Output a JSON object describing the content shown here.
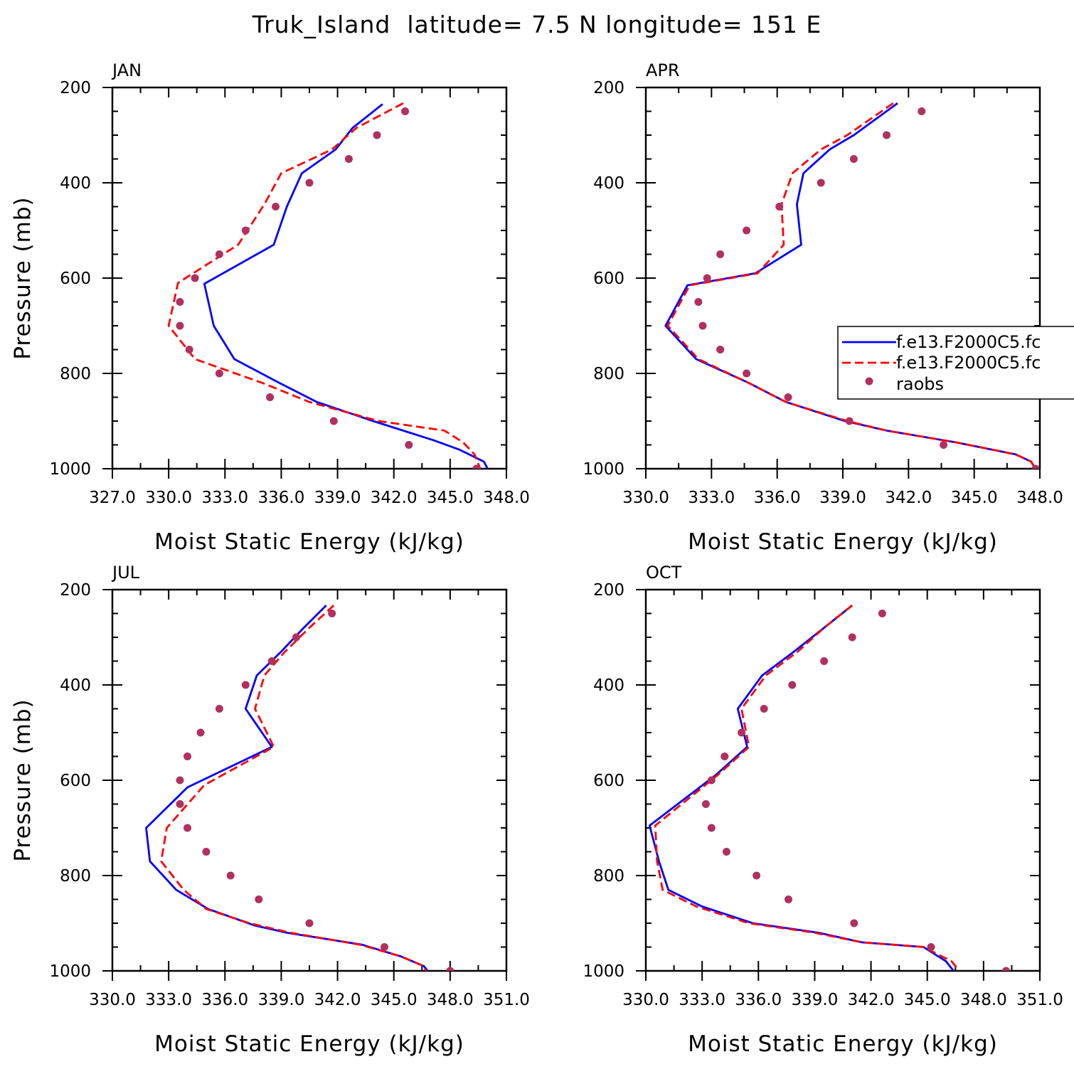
{
  "page_title": "Truk_Island  latitude= 7.5 N longitude= 151 E",
  "colors": {
    "series1": "#0000ff",
    "series2": "#ff0000",
    "raobs": "#b03060"
  },
  "legend": {
    "entries": [
      "f.e13.F2000C5.fc",
      "f.e13.F2000C5.fc",
      "raobs"
    ]
  },
  "chart_data": [
    {
      "type": "line",
      "panel_label": "JAN",
      "xlabel": "Moist Static Energy (kJ/kg)",
      "ylabel": "Pressure (mb)",
      "xlim": [
        327.0,
        348.0
      ],
      "ylim": [
        1000,
        200
      ],
      "xtick_values": [
        327.0,
        330.0,
        333.0,
        336.0,
        339.0,
        342.0,
        345.0,
        348.0
      ],
      "xtick_labels": [
        "327.0",
        "330.0",
        "333.0",
        "336.0",
        "339.0",
        "342.0",
        "345.0",
        "348.0"
      ],
      "ytick_values": [
        200,
        400,
        600,
        800,
        1000
      ],
      "ytick_labels": [
        "200",
        "400",
        "600",
        "800",
        "1000"
      ],
      "series": [
        {
          "name": "f.e13.F2000C5.fc",
          "style": "solid",
          "x": [
            341.4,
            339.8,
            338.9,
            337.1,
            336.3,
            335.6,
            331.9,
            332.4,
            333.5,
            335.9,
            337.9,
            340.9,
            344.1,
            345.5,
            346.8,
            347.0
          ],
          "y": [
            235,
            285,
            330,
            380,
            450,
            530,
            612,
            700,
            770,
            820,
            860,
            900,
            940,
            960,
            985,
            1000
          ]
        },
        {
          "name": "f.e13.F2000C5.fc",
          "style": "dashed",
          "x": [
            342.5,
            340.0,
            338.7,
            336.0,
            335.1,
            333.7,
            330.5,
            330.0,
            331.4,
            335.0,
            337.5,
            341.2,
            344.7,
            345.7,
            346.3,
            346.6
          ],
          "y": [
            233,
            285,
            330,
            380,
            445,
            530,
            610,
            700,
            770,
            820,
            860,
            900,
            920,
            945,
            970,
            1000
          ]
        },
        {
          "name": "raobs",
          "style": "markers",
          "x": [
            342.6,
            341.1,
            339.6,
            337.5,
            335.7,
            334.1,
            332.7,
            331.4,
            330.6,
            330.6,
            331.1,
            332.7,
            335.4,
            338.8,
            342.8,
            346.4
          ],
          "y": [
            250,
            300,
            350,
            400,
            450,
            500,
            550,
            600,
            650,
            700,
            750,
            800,
            850,
            900,
            950,
            1000
          ]
        }
      ]
    },
    {
      "type": "line",
      "panel_label": "APR",
      "xlabel": "Moist Static Energy (kJ/kg)",
      "ylabel": "Pressure (mb)",
      "xlim": [
        330.0,
        348.0
      ],
      "ylim": [
        1000,
        200
      ],
      "xtick_values": [
        330.0,
        333.0,
        336.0,
        339.0,
        342.0,
        345.0,
        348.0
      ],
      "xtick_labels": [
        "330.0",
        "333.0",
        "336.0",
        "339.0",
        "342.0",
        "345.0",
        "348.0"
      ],
      "ytick_values": [
        200,
        400,
        600,
        800,
        1000
      ],
      "ytick_labels": [
        "200",
        "400",
        "600",
        "800",
        "1000"
      ],
      "series": [
        {
          "name": "f.e13.F2000C5.fc",
          "style": "solid",
          "x": [
            341.5,
            339.5,
            338.4,
            337.2,
            336.9,
            337.1,
            335.0,
            331.9,
            330.9,
            332.3,
            334.7,
            336.4,
            339.1,
            341.0,
            344.2,
            346.9,
            347.6,
            347.8
          ],
          "y": [
            233,
            300,
            330,
            380,
            445,
            530,
            590,
            615,
            700,
            770,
            820,
            860,
            900,
            920,
            945,
            970,
            985,
            1000
          ]
        },
        {
          "name": "f.e13.F2000C5.fc",
          "style": "dashed",
          "x": [
            341.3,
            339.2,
            338.0,
            336.7,
            336.2,
            336.3,
            335.1,
            332.0,
            331.0,
            332.4,
            334.7,
            336.4,
            339.2,
            341.0,
            344.2,
            346.9,
            347.6,
            347.8
          ],
          "y": [
            233,
            300,
            330,
            380,
            445,
            530,
            590,
            615,
            700,
            770,
            820,
            860,
            900,
            920,
            945,
            970,
            985,
            1000
          ]
        },
        {
          "name": "raobs",
          "style": "markers",
          "x": [
            342.6,
            341.0,
            339.5,
            338.0,
            336.1,
            334.6,
            333.4,
            332.8,
            332.4,
            332.6,
            333.4,
            334.6,
            336.5,
            339.3,
            343.6,
            347.8
          ],
          "y": [
            250,
            300,
            350,
            400,
            450,
            500,
            550,
            600,
            650,
            700,
            750,
            800,
            850,
            900,
            950,
            1000
          ]
        }
      ]
    },
    {
      "type": "line",
      "panel_label": "JUL",
      "xlabel": "Moist Static Energy (kJ/kg)",
      "ylabel": "Pressure (mb)",
      "xlim": [
        330.0,
        351.0
      ],
      "ylim": [
        1000,
        200
      ],
      "xtick_values": [
        330.0,
        333.0,
        336.0,
        339.0,
        342.0,
        345.0,
        348.0,
        351.0
      ],
      "xtick_labels": [
        "330.0",
        "333.0",
        "336.0",
        "339.0",
        "342.0",
        "345.0",
        "348.0",
        "351.0"
      ],
      "ytick_values": [
        200,
        400,
        600,
        800,
        1000
      ],
      "ytick_labels": [
        "200",
        "400",
        "600",
        "800",
        "1000"
      ],
      "series": [
        {
          "name": "f.e13.F2000C5.fc",
          "style": "solid",
          "x": [
            341.4,
            340.2,
            339.0,
            337.7,
            337.1,
            338.5,
            334.0,
            331.8,
            332.0,
            333.4,
            335.1,
            337.6,
            339.3,
            343.3,
            345.4,
            346.6,
            346.8
          ],
          "y": [
            233,
            280,
            330,
            380,
            450,
            530,
            615,
            700,
            770,
            830,
            870,
            905,
            920,
            945,
            970,
            990,
            1000
          ]
        },
        {
          "name": "f.e13.F2000C5.fc",
          "style": "dashed",
          "x": [
            341.8,
            340.5,
            339.2,
            338.1,
            337.6,
            338.6,
            334.9,
            332.9,
            332.6,
            333.8,
            335.0,
            337.3,
            339.5,
            343.2,
            345.4,
            346.6,
            346.7
          ],
          "y": [
            233,
            280,
            330,
            380,
            450,
            530,
            610,
            700,
            770,
            830,
            870,
            900,
            920,
            945,
            970,
            990,
            1000
          ]
        },
        {
          "name": "raobs",
          "style": "markers",
          "x": [
            341.7,
            339.8,
            338.5,
            337.1,
            335.7,
            334.7,
            334.0,
            333.6,
            333.6,
            334.0,
            335.0,
            336.3,
            337.8,
            340.5,
            344.5,
            348.0
          ],
          "y": [
            250,
            300,
            350,
            400,
            450,
            500,
            550,
            600,
            650,
            700,
            750,
            800,
            850,
            900,
            950,
            1000
          ]
        }
      ]
    },
    {
      "type": "line",
      "panel_label": "OCT",
      "xlabel": "Moist Static Energy (kJ/kg)",
      "ylabel": "Pressure (mb)",
      "xlim": [
        330.0,
        351.0
      ],
      "ylim": [
        1000,
        200
      ],
      "xtick_values": [
        330.0,
        333.0,
        336.0,
        339.0,
        342.0,
        345.0,
        348.0,
        351.0
      ],
      "xtick_labels": [
        "330.0",
        "333.0",
        "336.0",
        "339.0",
        "342.0",
        "345.0",
        "348.0",
        "351.0"
      ],
      "ytick_values": [
        200,
        400,
        600,
        800,
        1000
      ],
      "ytick_labels": [
        "200",
        "400",
        "600",
        "800",
        "1000"
      ],
      "series": [
        {
          "name": "f.e13.F2000C5.fc",
          "style": "solid",
          "x": [
            341.0,
            339.5,
            337.9,
            336.2,
            334.9,
            335.4,
            333.7,
            330.2,
            330.7,
            331.2,
            333.0,
            335.7,
            339.2,
            341.5,
            344.8,
            346.0,
            346.4
          ],
          "y": [
            233,
            280,
            330,
            380,
            450,
            530,
            590,
            695,
            770,
            830,
            865,
            900,
            920,
            940,
            950,
            980,
            1000
          ]
        },
        {
          "name": "f.e13.F2000C5.fc",
          "style": "dashed",
          "x": [
            341.0,
            339.5,
            338.1,
            336.4,
            335.1,
            335.5,
            333.8,
            330.5,
            330.6,
            330.9,
            332.7,
            335.5,
            339.0,
            341.5,
            344.8,
            346.3,
            346.7
          ],
          "y": [
            233,
            280,
            330,
            380,
            450,
            530,
            590,
            695,
            770,
            830,
            865,
            900,
            920,
            940,
            950,
            980,
            1000
          ]
        },
        {
          "name": "raobs",
          "style": "markers",
          "x": [
            342.6,
            341.0,
            339.5,
            337.8,
            336.3,
            335.1,
            334.2,
            333.5,
            333.2,
            333.5,
            334.3,
            335.9,
            337.6,
            341.1,
            345.2,
            349.2
          ],
          "y": [
            250,
            300,
            350,
            400,
            450,
            500,
            550,
            600,
            650,
            700,
            750,
            800,
            850,
            900,
            950,
            1000
          ]
        }
      ]
    }
  ]
}
